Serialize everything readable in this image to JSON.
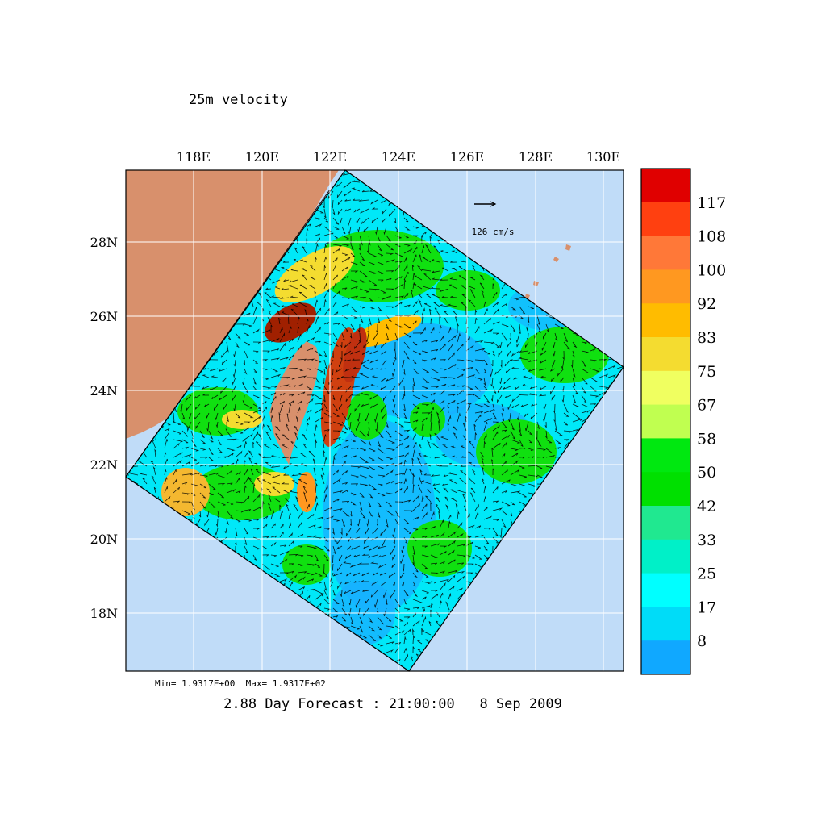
{
  "title": "25m velocity",
  "x_ticks": [
    "118E",
    "120E",
    "122E",
    "124E",
    "126E",
    "128E",
    "130E"
  ],
  "y_ticks": [
    "28N",
    "26N",
    "24N",
    "22N",
    "20N",
    "18N"
  ],
  "reference_vector_label": "126 cm/s",
  "min_max": "Min= 1.9317E+00  Max= 1.9317E+02",
  "forecast_label": "2.88 Day Forecast : 21:00:00   8 Sep 2009",
  "colorbar": {
    "labels": [
      "117",
      "108",
      "100",
      "92",
      "83",
      "75",
      "67",
      "58",
      "50",
      "42",
      "33",
      "25",
      "17",
      "8"
    ],
    "colors": [
      "#e00000",
      "#ff4010",
      "#ff7838",
      "#ff9820",
      "#ffbc00",
      "#f4dc30",
      "#f0ff60",
      "#c0ff50",
      "#00e810",
      "#00e000",
      "#20e890",
      "#00f0c8",
      "#00ffff",
      "#00dcf8",
      "#10a8ff"
    ]
  },
  "colors": {
    "ocean": "#c0dcf8",
    "land": "#d8906c",
    "grid": "#ffffff"
  }
}
